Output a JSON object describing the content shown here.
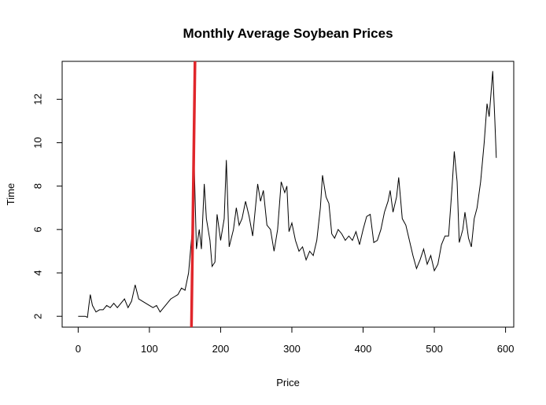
{
  "chart_data": {
    "type": "line",
    "title": "Monthly Average Soybean Prices",
    "x_label": "Price",
    "y_label": "Time",
    "x": [
      0,
      5,
      10,
      13,
      15,
      17,
      20,
      25,
      30,
      35,
      40,
      45,
      50,
      55,
      60,
      65,
      70,
      75,
      80,
      85,
      90,
      95,
      100,
      105,
      110,
      115,
      120,
      125,
      130,
      135,
      140,
      145,
      150,
      155,
      160,
      163,
      166,
      170,
      173,
      177,
      180,
      185,
      188,
      192,
      195,
      200,
      205,
      208,
      212,
      218,
      222,
      226,
      230,
      235,
      240,
      245,
      250,
      252,
      256,
      260,
      265,
      270,
      275,
      280,
      285,
      290,
      293,
      296,
      300,
      305,
      310,
      315,
      320,
      325,
      330,
      335,
      340,
      343,
      348,
      352,
      356,
      360,
      365,
      370,
      375,
      380,
      385,
      390,
      395,
      400,
      405,
      410,
      415,
      420,
      425,
      430,
      435,
      438,
      442,
      447,
      450,
      455,
      460,
      465,
      470,
      475,
      480,
      485,
      490,
      495,
      500,
      505,
      510,
      515,
      520,
      525,
      528,
      532,
      535,
      540,
      543,
      548,
      552,
      556,
      560,
      565,
      570,
      574,
      577,
      582,
      585,
      587
    ],
    "series": [
      {
        "name": "Soybean",
        "color": "#000000",
        "values": [
          2.0,
          2.0,
          2.0,
          1.95,
          2.5,
          3.0,
          2.5,
          2.2,
          2.3,
          2.3,
          2.5,
          2.4,
          2.6,
          2.4,
          2.6,
          2.8,
          2.4,
          2.7,
          3.45,
          2.8,
          2.7,
          2.6,
          2.5,
          2.4,
          2.5,
          2.2,
          2.4,
          2.6,
          2.8,
          2.9,
          3.0,
          3.3,
          3.2,
          4.0,
          5.9,
          8.9,
          5.1,
          6.0,
          5.1,
          8.1,
          6.5,
          5.5,
          4.3,
          4.5,
          6.7,
          5.5,
          6.5,
          9.2,
          5.2,
          6.0,
          7.0,
          6.2,
          6.5,
          7.3,
          6.6,
          5.7,
          7.4,
          8.1,
          7.3,
          7.8,
          6.2,
          6.0,
          5.0,
          6.0,
          8.2,
          7.7,
          8.0,
          5.9,
          6.3,
          5.5,
          5.0,
          5.2,
          4.6,
          5.0,
          4.8,
          5.5,
          7.0,
          8.5,
          7.5,
          7.2,
          5.8,
          5.6,
          6.0,
          5.8,
          5.5,
          5.7,
          5.5,
          5.9,
          5.3,
          6.0,
          6.6,
          6.7,
          5.4,
          5.5,
          6.0,
          6.8,
          7.3,
          7.8,
          6.8,
          7.5,
          8.4,
          6.5,
          6.2,
          5.5,
          4.8,
          4.2,
          4.6,
          5.1,
          4.4,
          4.8,
          4.1,
          4.4,
          5.3,
          5.7,
          5.7,
          8.0,
          9.6,
          8.2,
          5.4,
          6.0,
          6.8,
          5.6,
          5.2,
          6.5,
          7.0,
          8.2,
          10.0,
          11.8,
          11.2,
          13.3,
          11.0,
          9.3
        ]
      }
    ],
    "reference_line": {
      "color": "#e0262b",
      "x": [
        159,
        164
      ],
      "y": [
        1.5,
        13.75
      ]
    },
    "xlim": [
      -22.5,
      611.5
    ],
    "ylim": [
      1.5,
      13.75
    ],
    "xticks": [
      0,
      100,
      200,
      300,
      400,
      500,
      600
    ],
    "yticks": [
      2,
      4,
      6,
      8,
      10,
      12
    ]
  }
}
